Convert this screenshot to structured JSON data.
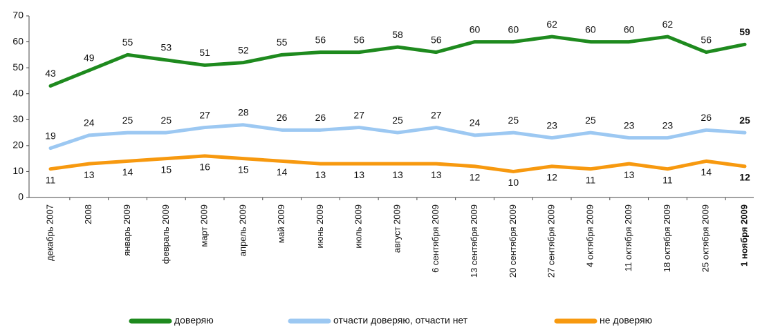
{
  "chart_data": {
    "type": "line",
    "categories": [
      "декабрь 2007",
      "2008",
      "январь 2009",
      "февраль 2009",
      "март 2009",
      "апрель 2009",
      "май 2009",
      "июнь 2009",
      "июль 2009",
      "август 2009",
      "6 сентября 2009",
      "13 сентября 2009",
      "20 сентября 2009",
      "27 сентября 2009",
      "4 октября 2009",
      "11 октября 2009",
      "18 октября 2009",
      "25 октября 2009",
      "1 ноября 2009"
    ],
    "series": [
      {
        "name": "доверяю",
        "color": "#1e8a1e",
        "values": [
          43,
          49,
          55,
          53,
          51,
          52,
          55,
          56,
          56,
          58,
          56,
          60,
          60,
          62,
          60,
          60,
          62,
          56,
          59
        ]
      },
      {
        "name": "отчасти доверяю, отчасти нет",
        "color": "#9cc8f2",
        "values": [
          19,
          24,
          25,
          25,
          27,
          28,
          26,
          26,
          27,
          25,
          27,
          24,
          25,
          23,
          25,
          23,
          23,
          26,
          25
        ]
      },
      {
        "name": "не доверяю",
        "color": "#f7990f",
        "values": [
          11,
          13,
          14,
          15,
          16,
          15,
          14,
          13,
          13,
          13,
          13,
          12,
          10,
          12,
          11,
          13,
          11,
          14,
          12
        ]
      }
    ],
    "ylim": [
      0,
      70
    ],
    "yticks": [
      0,
      10,
      20,
      30,
      40,
      50,
      60,
      70
    ],
    "grid": false,
    "legend": "bottom"
  }
}
